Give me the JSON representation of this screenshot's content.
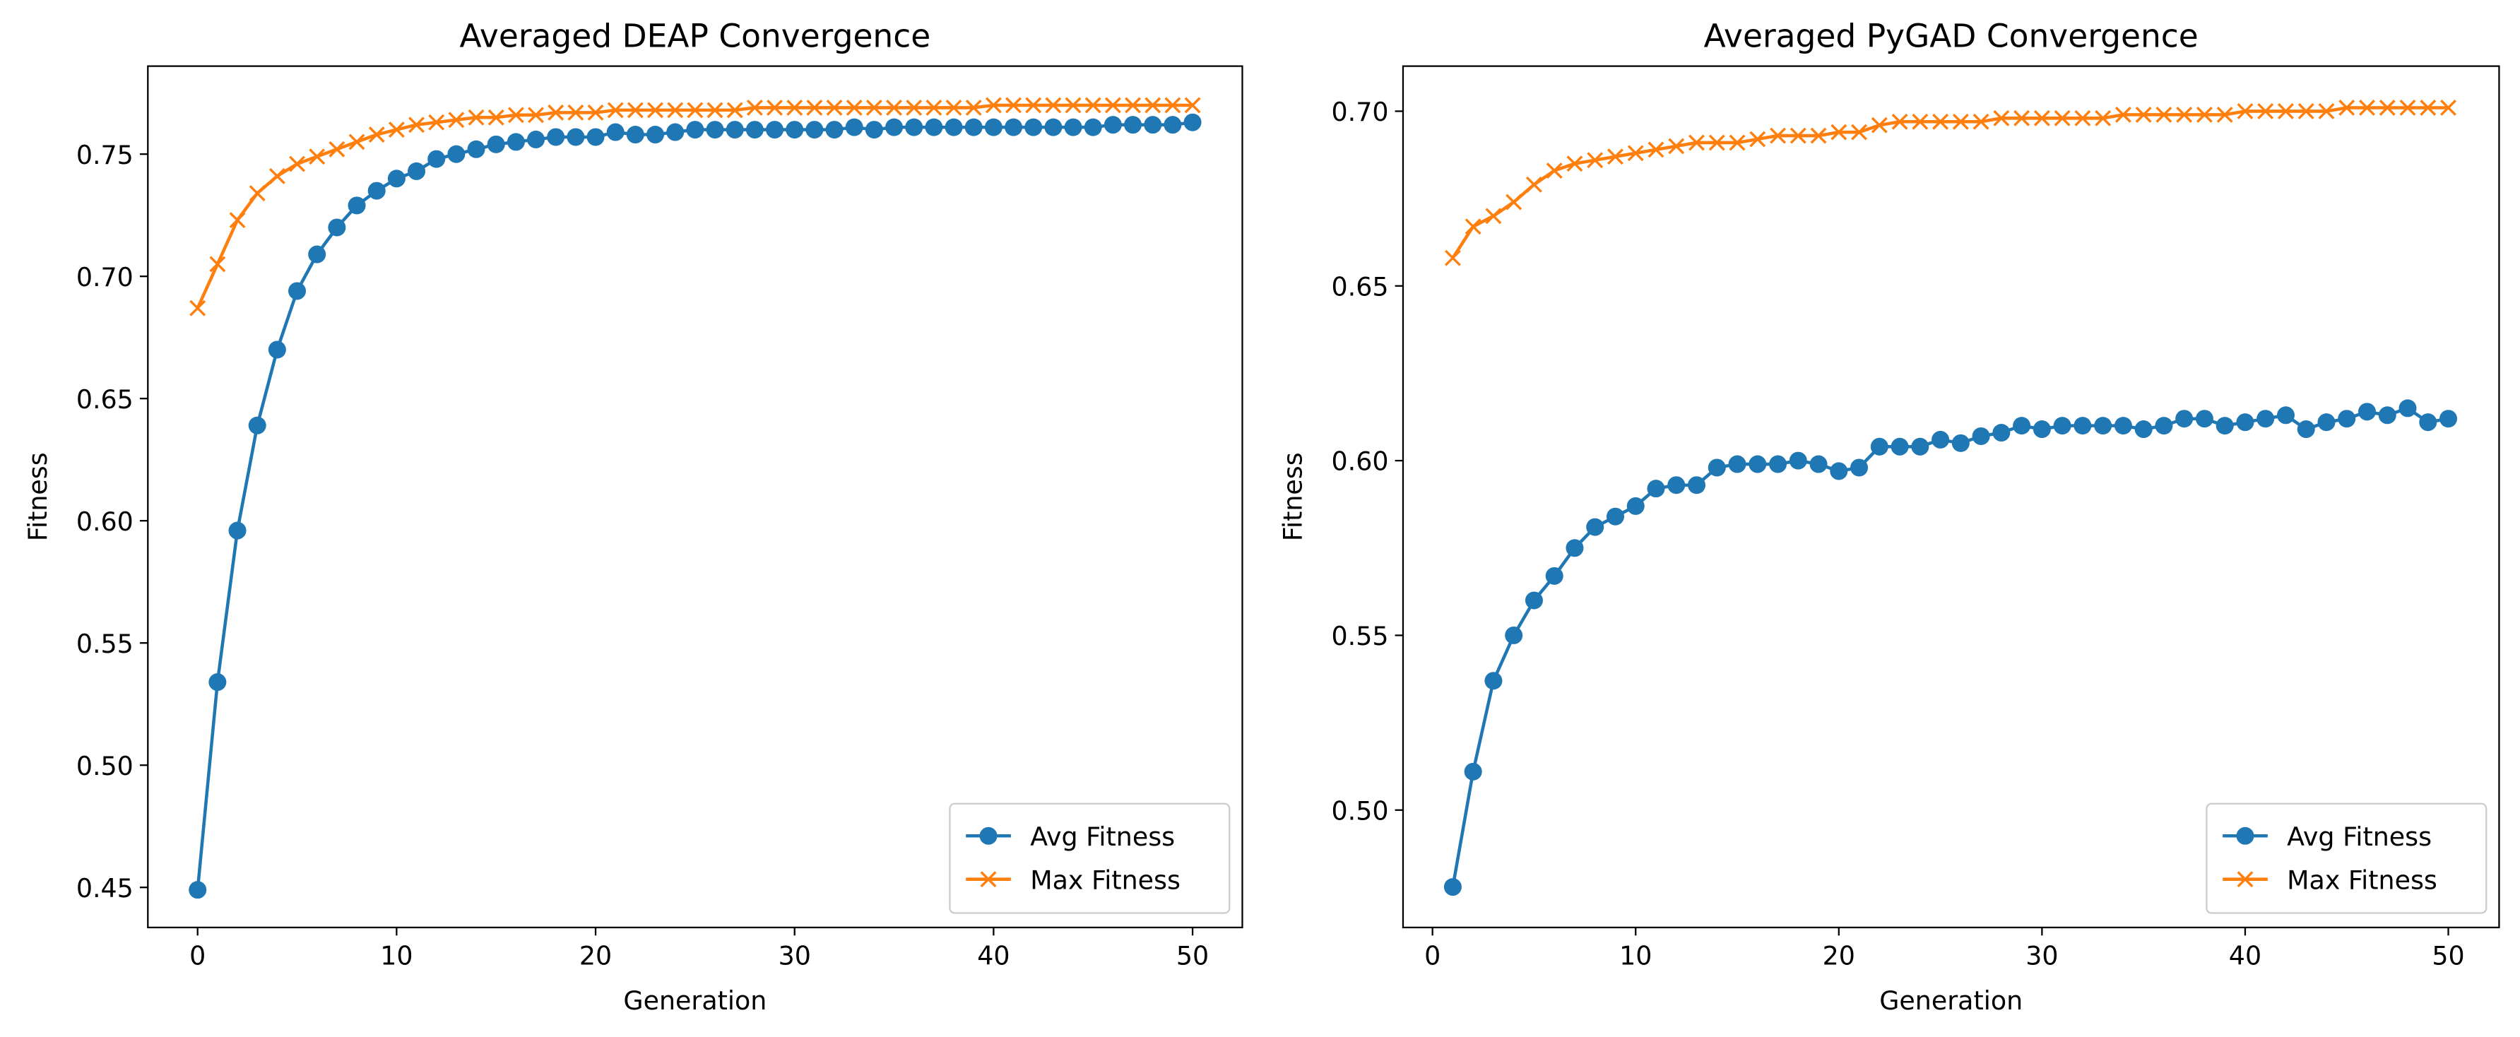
{
  "chart_data": [
    {
      "type": "line",
      "title": "Averaged DEAP Convergence",
      "xlabel": "Generation",
      "ylabel": "Fitness",
      "x": [
        0,
        1,
        2,
        3,
        4,
        5,
        6,
        7,
        8,
        9,
        10,
        11,
        12,
        13,
        14,
        15,
        16,
        17,
        18,
        19,
        20,
        21,
        22,
        23,
        24,
        25,
        26,
        27,
        28,
        29,
        30,
        31,
        32,
        33,
        34,
        35,
        36,
        37,
        38,
        39,
        40,
        41,
        42,
        43,
        44,
        45,
        46,
        47,
        48,
        49,
        50
      ],
      "series": [
        {
          "name": "Avg Fitness",
          "color": "#1f77b4",
          "marker": "o",
          "values": [
            0.449,
            0.534,
            0.596,
            0.639,
            0.67,
            0.694,
            0.709,
            0.72,
            0.729,
            0.735,
            0.74,
            0.743,
            0.748,
            0.75,
            0.752,
            0.754,
            0.755,
            0.756,
            0.757,
            0.757,
            0.757,
            0.759,
            0.758,
            0.758,
            0.759,
            0.76,
            0.76,
            0.76,
            0.76,
            0.76,
            0.76,
            0.76,
            0.76,
            0.761,
            0.76,
            0.761,
            0.761,
            0.761,
            0.761,
            0.761,
            0.761,
            0.761,
            0.761,
            0.761,
            0.761,
            0.761,
            0.762,
            0.762,
            0.762,
            0.762,
            0.763
          ]
        },
        {
          "name": "Max Fitness",
          "color": "#ff7f0e",
          "marker": "x",
          "values": [
            0.687,
            0.705,
            0.723,
            0.734,
            0.741,
            0.746,
            0.749,
            0.752,
            0.755,
            0.758,
            0.76,
            0.762,
            0.763,
            0.764,
            0.765,
            0.765,
            0.766,
            0.766,
            0.767,
            0.767,
            0.767,
            0.768,
            0.768,
            0.768,
            0.768,
            0.768,
            0.768,
            0.768,
            0.769,
            0.769,
            0.769,
            0.769,
            0.769,
            0.769,
            0.769,
            0.769,
            0.769,
            0.769,
            0.769,
            0.769,
            0.77,
            0.77,
            0.77,
            0.77,
            0.77,
            0.77,
            0.77,
            0.77,
            0.77,
            0.77,
            0.77
          ]
        }
      ],
      "xlim": [
        -2.5,
        52.5
      ],
      "xticks": [
        0,
        10,
        20,
        30,
        40,
        50
      ],
      "ylim": [
        0.4336,
        0.786
      ],
      "yticks": [
        0.45,
        {
          "value": 0.5,
          "label": "0.50"
        },
        0.55,
        {
          "value": 0.6,
          "label": "0.60"
        },
        0.65,
        {
          "value": 0.7,
          "label": "0.70"
        },
        0.75
      ],
      "legend": "lower right",
      "grid": false
    },
    {
      "type": "line",
      "title": "Averaged PyGAD Convergence",
      "xlabel": "Generation",
      "ylabel": "Fitness",
      "x": [
        1,
        2,
        3,
        4,
        5,
        6,
        7,
        8,
        9,
        10,
        11,
        12,
        13,
        14,
        15,
        16,
        17,
        18,
        19,
        20,
        21,
        22,
        23,
        24,
        25,
        26,
        27,
        28,
        29,
        30,
        31,
        32,
        33,
        34,
        35,
        36,
        37,
        38,
        39,
        40,
        41,
        42,
        43,
        44,
        45,
        46,
        47,
        48,
        49,
        50
      ],
      "series": [
        {
          "name": "Avg Fitness",
          "color": "#1f77b4",
          "marker": "o",
          "values": [
            0.478,
            0.511,
            0.537,
            0.55,
            0.56,
            0.567,
            0.575,
            0.581,
            0.584,
            0.587,
            0.592,
            0.593,
            0.593,
            0.598,
            0.599,
            0.599,
            0.599,
            0.6,
            0.599,
            0.597,
            0.598,
            0.604,
            0.604,
            0.604,
            0.606,
            0.605,
            0.607,
            0.608,
            0.61,
            0.609,
            0.61,
            0.61,
            0.61,
            0.61,
            0.609,
            0.61,
            0.612,
            0.612,
            0.61,
            0.611,
            0.612,
            0.613,
            0.609,
            0.611,
            0.612,
            0.614,
            0.613,
            0.615,
            0.611,
            0.612
          ]
        },
        {
          "name": "Max Fitness",
          "color": "#ff7f0e",
          "marker": "x",
          "values": [
            0.658,
            0.667,
            0.67,
            0.674,
            0.679,
            0.683,
            0.685,
            0.686,
            0.687,
            0.688,
            0.689,
            0.69,
            0.691,
            0.691,
            0.691,
            0.692,
            0.693,
            0.693,
            0.693,
            0.694,
            0.694,
            0.696,
            0.697,
            0.697,
            0.697,
            0.697,
            0.697,
            0.698,
            0.698,
            0.698,
            0.698,
            0.698,
            0.698,
            0.699,
            0.699,
            0.699,
            0.699,
            0.699,
            0.699,
            0.7,
            0.7,
            0.7,
            0.7,
            0.7,
            0.701,
            0.701,
            0.701,
            0.701,
            0.701,
            0.701
          ]
        }
      ],
      "xlim": [
        -1.45,
        52.5
      ],
      "xticks": [
        0,
        10,
        20,
        30,
        40,
        50
      ],
      "ylim": [
        0.4664,
        0.7129
      ],
      "yticks": [
        {
          "value": 0.5,
          "label": "0.50"
        },
        0.55,
        {
          "value": 0.6,
          "label": "0.60"
        },
        0.65,
        {
          "value": 0.7,
          "label": "0.70"
        }
      ],
      "legend": "lower right",
      "grid": false
    }
  ]
}
